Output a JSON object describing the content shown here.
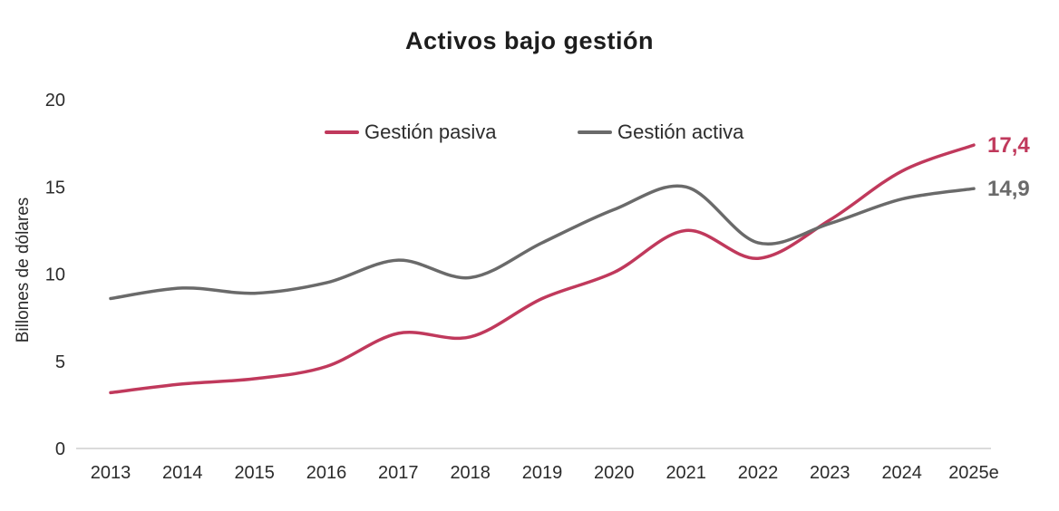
{
  "chart_data": {
    "type": "line",
    "title": "Activos bajo gestión",
    "ylabel": "Billones de dólares",
    "xlabel": "",
    "categories": [
      "2013",
      "2014",
      "2015",
      "2016",
      "2017",
      "2018",
      "2019",
      "2020",
      "2021",
      "2022",
      "2023",
      "2024",
      "2025e"
    ],
    "series": [
      {
        "name": "Gestión pasiva",
        "color": "#C0395C",
        "values": [
          3.2,
          3.7,
          4.0,
          4.7,
          6.6,
          6.4,
          8.6,
          10.1,
          12.5,
          10.9,
          13.1,
          15.9,
          17.4
        ],
        "end_label": "17,4"
      },
      {
        "name": "Gestión activa",
        "color": "#6A6A6A",
        "values": [
          8.6,
          9.2,
          8.9,
          9.5,
          10.8,
          9.8,
          11.8,
          13.7,
          15.0,
          11.8,
          12.9,
          14.3,
          14.9
        ],
        "end_label": "14,9"
      }
    ],
    "yticks": [
      0,
      5,
      10,
      15,
      20
    ],
    "ylim": [
      0,
      20
    ],
    "grid": false,
    "legend_position": "top-center",
    "colors": {
      "axis_line": "#DBDBDB",
      "tick_text": "#2b2b2b",
      "title_text": "#1d1d1d"
    }
  }
}
